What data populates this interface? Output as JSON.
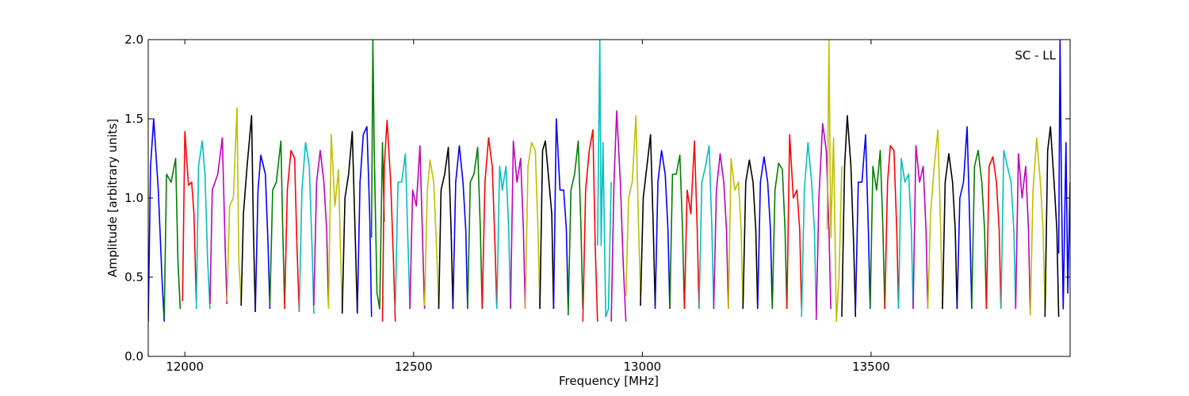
{
  "chart_data": {
    "type": "line",
    "title": "",
    "xlabel": "Frequency [MHz]",
    "ylabel": "Amplitude [arbitrary units]",
    "annotation": "SC - LL",
    "xlim": [
      11920,
      13935
    ],
    "ylim": [
      0.0,
      2.0
    ],
    "xticks": [
      {
        "value": 12000,
        "label": "12000"
      },
      {
        "value": 12500,
        "label": "12500"
      },
      {
        "value": 13000,
        "label": "13000"
      },
      {
        "value": 13500,
        "label": "13500"
      }
    ],
    "yticks": [
      {
        "value": 0.0,
        "label": "0.0"
      },
      {
        "value": 0.5,
        "label": "0.5"
      },
      {
        "value": 1.0,
        "label": "1.0"
      },
      {
        "value": 1.5,
        "label": "1.5"
      },
      {
        "value": 2.0,
        "label": "2.0"
      }
    ],
    "grid": false,
    "legend": "none",
    "color_cycle": [
      "#0000ff",
      "#007f00",
      "#ff0000",
      "#00bfbf",
      "#bf00bf",
      "#bfbf00",
      "#000000"
    ],
    "background_series_color": "#bfbfbf",
    "channel_width_mhz": 26.5,
    "series": [
      {
        "color": "#0000ff",
        "x": [
          11920,
          11925,
          11932,
          11942,
          11950,
          11955
        ],
        "y": [
          0.22,
          1.2,
          1.5,
          1.05,
          0.5,
          0.22
        ]
      },
      {
        "color": "#007f00",
        "x": [
          11955,
          11960,
          11970,
          11980,
          11985,
          11990
        ],
        "y": [
          0.25,
          1.15,
          1.1,
          1.25,
          0.6,
          0.3
        ]
      },
      {
        "color": "#ff0000",
        "x": [
          11995,
          12000,
          12008,
          12015,
          12020,
          12025
        ],
        "y": [
          0.35,
          1.42,
          1.08,
          1.1,
          0.9,
          0.35
        ]
      },
      {
        "color": "#00bfbf",
        "x": [
          12025,
          12030,
          12038,
          12044,
          12050,
          12055
        ],
        "y": [
          0.3,
          1.2,
          1.36,
          1.15,
          0.6,
          0.3
        ]
      },
      {
        "color": "#bf00bf",
        "x": [
          12055,
          12060,
          12072,
          12082,
          12088,
          12092
        ],
        "y": [
          0.33,
          1.05,
          1.15,
          1.38,
          0.7,
          0.33
        ]
      },
      {
        "color": "#bfbf00",
        "x": [
          12092,
          12098,
          12106,
          12114,
          12118,
          12123
        ],
        "y": [
          0.35,
          0.95,
          1.0,
          1.57,
          0.6,
          0.35
        ]
      },
      {
        "color": "#000000",
        "x": [
          12123,
          12128,
          12136,
          12146,
          12150,
          12154
        ],
        "y": [
          0.32,
          0.9,
          1.2,
          1.52,
          0.8,
          0.28
        ]
      },
      {
        "color": "#0000ff",
        "x": [
          12154,
          12160,
          12166,
          12176,
          12182,
          12186
        ],
        "y": [
          0.28,
          1.05,
          1.27,
          1.15,
          0.7,
          0.3
        ]
      },
      {
        "color": "#007f00",
        "x": [
          12186,
          12192,
          12200,
          12210,
          12214,
          12218
        ],
        "y": [
          0.33,
          1.05,
          1.1,
          1.36,
          0.8,
          0.33
        ]
      },
      {
        "color": "#ff0000",
        "x": [
          12218,
          12224,
          12232,
          12240,
          12245,
          12250
        ],
        "y": [
          0.3,
          1.05,
          1.3,
          1.25,
          0.7,
          0.28
        ]
      },
      {
        "color": "#00bfbf",
        "x": [
          12250,
          12256,
          12264,
          12272,
          12278,
          12282
        ],
        "y": [
          0.28,
          1.05,
          1.35,
          1.2,
          0.7,
          0.27
        ]
      },
      {
        "color": "#bf00bf",
        "x": [
          12282,
          12288,
          12296,
          12304,
          12310,
          12314
        ],
        "y": [
          0.32,
          1.1,
          1.3,
          1.1,
          0.8,
          0.32
        ]
      },
      {
        "color": "#bfbf00",
        "x": [
          12314,
          12320,
          12328,
          12336,
          12340,
          12344
        ],
        "y": [
          0.3,
          1.4,
          0.95,
          1.18,
          0.7,
          0.3
        ]
      },
      {
        "color": "#000000",
        "x": [
          12344,
          12350,
          12358,
          12366,
          12372,
          12377
        ],
        "y": [
          0.27,
          1.0,
          1.15,
          1.42,
          0.8,
          0.27
        ]
      },
      {
        "color": "#0000ff",
        "x": [
          12377,
          12383,
          12390,
          12398,
          12404,
          12408
        ],
        "y": [
          0.27,
          1.1,
          1.4,
          1.45,
          0.9,
          0.25
        ]
      },
      {
        "color": "#007f00",
        "x": [
          12408,
          12411,
          12414,
          12420,
          12426,
          12432,
          12436
        ],
        "y": [
          0.75,
          2.0,
          1.3,
          0.4,
          0.3,
          1.35,
          0.85
        ]
      },
      {
        "color": "#ff0000",
        "x": [
          12432,
          12436,
          12442,
          12450,
          12456,
          12460
        ],
        "y": [
          0.22,
          1.2,
          1.49,
          1.1,
          0.6,
          0.22
        ]
      },
      {
        "color": "#00bfbf",
        "x": [
          12460,
          12466,
          12474,
          12482,
          12488,
          12492
        ],
        "y": [
          0.3,
          1.1,
          1.1,
          1.28,
          0.7,
          0.3
        ]
      },
      {
        "color": "#bf00bf",
        "x": [
          12492,
          12498,
          12506,
          12514,
          12520,
          12524
        ],
        "y": [
          0.3,
          1.05,
          0.95,
          1.33,
          0.7,
          0.3
        ]
      },
      {
        "color": "#bfbf00",
        "x": [
          12524,
          12530,
          12536,
          12544,
          12550,
          12555
        ],
        "y": [
          0.32,
          1.05,
          1.24,
          1.1,
          0.7,
          0.3
        ]
      },
      {
        "color": "#000000",
        "x": [
          12555,
          12560,
          12568,
          12576,
          12582,
          12586
        ],
        "y": [
          0.3,
          1.05,
          1.15,
          1.32,
          0.8,
          0.3
        ]
      },
      {
        "color": "#0000ff",
        "x": [
          12586,
          12592,
          12600,
          12608,
          12614,
          12618
        ],
        "y": [
          0.3,
          1.1,
          1.33,
          1.1,
          0.8,
          0.3
        ]
      },
      {
        "color": "#007f00",
        "x": [
          12618,
          12624,
          12632,
          12640,
          12646,
          12650
        ],
        "y": [
          0.3,
          1.1,
          1.15,
          1.32,
          0.8,
          0.3
        ]
      },
      {
        "color": "#ff0000",
        "x": [
          12650,
          12656,
          12664,
          12672,
          12678,
          12682
        ],
        "y": [
          0.3,
          1.1,
          1.38,
          1.2,
          0.7,
          0.3
        ]
      },
      {
        "color": "#00bfbf",
        "x": [
          12682,
          12688,
          12694,
          12702,
          12708,
          12712
        ],
        "y": [
          0.3,
          1.2,
          1.05,
          1.2,
          0.8,
          0.3
        ]
      },
      {
        "color": "#bf00bf",
        "x": [
          12712,
          12718,
          12726,
          12734,
          12740,
          12744
        ],
        "y": [
          0.3,
          1.36,
          1.1,
          1.25,
          0.8,
          0.3
        ]
      },
      {
        "color": "#bfbf00",
        "x": [
          12744,
          12750,
          12758,
          12766,
          12772,
          12776
        ],
        "y": [
          0.3,
          1.2,
          1.35,
          1.3,
          0.8,
          0.3
        ]
      },
      {
        "color": "#000000",
        "x": [
          12776,
          12782,
          12788,
          12796,
          12802,
          12806
        ],
        "y": [
          0.3,
          1.3,
          1.36,
          1.1,
          0.9,
          0.3
        ]
      },
      {
        "color": "#0000ff",
        "x": [
          12806,
          12812,
          12820,
          12828,
          12834,
          12838
        ],
        "y": [
          0.3,
          1.5,
          1.05,
          1.05,
          0.8,
          0.3
        ]
      },
      {
        "color": "#007f00",
        "x": [
          12838,
          12844,
          12852,
          12860,
          12866,
          12870
        ],
        "y": [
          0.26,
          1.05,
          1.15,
          1.36,
          0.8,
          0.3
        ]
      },
      {
        "color": "#ff0000",
        "x": [
          12870,
          12876,
          12884,
          12892,
          12897,
          12902
        ],
        "y": [
          0.22,
          1.05,
          1.3,
          1.43,
          0.7,
          0.22
        ]
      },
      {
        "color": "#00bfbf",
        "x": [
          12902,
          12907,
          12910,
          12914,
          12920,
          12926,
          12932
        ],
        "y": [
          0.7,
          2.0,
          0.7,
          1.35,
          0.25,
          0.3,
          1.1
        ]
      },
      {
        "color": "#bf00bf",
        "x": [
          12932,
          12938,
          12944,
          12952,
          12958,
          12964
        ],
        "y": [
          0.22,
          1.1,
          1.55,
          1.1,
          0.6,
          0.22
        ]
      },
      {
        "color": "#bfbf00",
        "x": [
          12964,
          12970,
          12978,
          12986,
          12992,
          12996
        ],
        "y": [
          0.38,
          1.0,
          1.1,
          1.52,
          0.8,
          0.38
        ]
      },
      {
        "color": "#000000",
        "x": [
          12996,
          13002,
          13010,
          13018,
          13024,
          13028
        ],
        "y": [
          0.32,
          1.0,
          1.2,
          1.4,
          0.8,
          0.32
        ]
      },
      {
        "color": "#0000ff",
        "x": [
          13028,
          13034,
          13042,
          13050,
          13056,
          13060
        ],
        "y": [
          0.3,
          1.1,
          1.3,
          1.15,
          0.8,
          0.3
        ]
      },
      {
        "color": "#007f00",
        "x": [
          13060,
          13066,
          13074,
          13082,
          13088,
          13092
        ],
        "y": [
          0.3,
          1.15,
          1.15,
          1.27,
          0.8,
          0.3
        ]
      },
      {
        "color": "#ff0000",
        "x": [
          13092,
          13098,
          13106,
          13114,
          13120,
          13124
        ],
        "y": [
          0.3,
          1.05,
          0.9,
          1.36,
          0.8,
          0.3
        ]
      },
      {
        "color": "#00bfbf",
        "x": [
          13124,
          13130,
          13138,
          13146,
          13152,
          13156
        ],
        "y": [
          0.3,
          1.1,
          1.2,
          1.33,
          0.8,
          0.3
        ]
      },
      {
        "color": "#bf00bf",
        "x": [
          13156,
          13162,
          13170,
          13178,
          13184,
          13188
        ],
        "y": [
          0.3,
          1.05,
          1.28,
          1.1,
          0.8,
          0.3
        ]
      },
      {
        "color": "#bfbf00",
        "x": [
          13188,
          13194,
          13202,
          13210,
          13216,
          13220
        ],
        "y": [
          0.3,
          1.25,
          1.05,
          1.1,
          0.8,
          0.3
        ]
      },
      {
        "color": "#000000",
        "x": [
          13220,
          13226,
          13234,
          13242,
          13248,
          13252
        ],
        "y": [
          0.3,
          1.1,
          1.24,
          1.1,
          0.8,
          0.3
        ]
      },
      {
        "color": "#0000ff",
        "x": [
          13252,
          13258,
          13266,
          13274,
          13280,
          13284
        ],
        "y": [
          0.3,
          1.1,
          1.26,
          1.1,
          0.8,
          0.3
        ]
      },
      {
        "color": "#007f00",
        "x": [
          13284,
          13290,
          13298,
          13306,
          13312,
          13316
        ],
        "y": [
          0.3,
          1.05,
          1.22,
          1.18,
          0.8,
          0.3
        ]
      },
      {
        "color": "#ff0000",
        "x": [
          13316,
          13322,
          13330,
          13338,
          13344,
          13348
        ],
        "y": [
          0.3,
          1.4,
          1.0,
          1.05,
          0.8,
          0.3
        ]
      },
      {
        "color": "#00bfbf",
        "x": [
          13348,
          13354,
          13362,
          13370,
          13376,
          13380
        ],
        "y": [
          0.25,
          1.05,
          1.35,
          1.1,
          0.8,
          0.28
        ]
      },
      {
        "color": "#bf00bf",
        "x": [
          13380,
          13386,
          13394,
          13402,
          13408,
          13412
        ],
        "y": [
          0.23,
          1.0,
          1.47,
          1.3,
          0.8,
          0.3
        ]
      },
      {
        "color": "#bfbf00",
        "x": [
          13404,
          13408,
          13412,
          13418,
          13424,
          13430,
          13436
        ],
        "y": [
          0.8,
          2.0,
          0.75,
          1.38,
          0.22,
          0.5,
          1.2
        ]
      },
      {
        "color": "#000000",
        "x": [
          13436,
          13442,
          13448,
          13456,
          13462,
          13466
        ],
        "y": [
          0.25,
          1.2,
          1.52,
          1.2,
          0.7,
          0.25
        ]
      },
      {
        "color": "#0000ff",
        "x": [
          13466,
          13472,
          13480,
          13488,
          13494,
          13498
        ],
        "y": [
          0.3,
          1.1,
          1.1,
          1.4,
          0.8,
          0.3
        ]
      },
      {
        "color": "#007f00",
        "x": [
          13498,
          13504,
          13512,
          13520,
          13526,
          13530
        ],
        "y": [
          0.3,
          1.2,
          1.05,
          1.3,
          0.8,
          0.3
        ]
      },
      {
        "color": "#ff0000",
        "x": [
          13530,
          13536,
          13542,
          13550,
          13556,
          13560
        ],
        "y": [
          0.3,
          1.1,
          1.33,
          1.3,
          0.8,
          0.3
        ]
      },
      {
        "color": "#00bfbf",
        "x": [
          13560,
          13566,
          13574,
          13582,
          13588,
          13592
        ],
        "y": [
          0.3,
          1.25,
          1.1,
          1.15,
          0.8,
          0.3
        ]
      },
      {
        "color": "#bf00bf",
        "x": [
          13592,
          13598,
          13606,
          13614,
          13620,
          13624
        ],
        "y": [
          0.3,
          1.33,
          1.1,
          1.2,
          0.8,
          0.3
        ]
      },
      {
        "color": "#bfbf00",
        "x": [
          13624,
          13630,
          13638,
          13646,
          13652,
          13656
        ],
        "y": [
          0.3,
          0.9,
          1.2,
          1.43,
          0.8,
          0.3
        ]
      },
      {
        "color": "#000000",
        "x": [
          13656,
          13662,
          13670,
          13678,
          13684,
          13688
        ],
        "y": [
          0.3,
          1.1,
          1.28,
          1.1,
          0.8,
          0.3
        ]
      },
      {
        "color": "#0000ff",
        "x": [
          13688,
          13694,
          13702,
          13710,
          13716,
          13720
        ],
        "y": [
          0.3,
          1.0,
          1.1,
          1.45,
          0.8,
          0.3
        ]
      },
      {
        "color": "#007f00",
        "x": [
          13720,
          13726,
          13734,
          13742,
          13748,
          13752
        ],
        "y": [
          0.3,
          1.2,
          1.3,
          1.1,
          0.8,
          0.3
        ]
      },
      {
        "color": "#ff0000",
        "x": [
          13752,
          13758,
          13766,
          13774,
          13780,
          13784
        ],
        "y": [
          0.3,
          1.2,
          1.26,
          1.1,
          0.8,
          0.3
        ]
      },
      {
        "color": "#00bfbf",
        "x": [
          13784,
          13790,
          13798,
          13806,
          13812,
          13816
        ],
        "y": [
          0.3,
          1.3,
          1.2,
          1.1,
          0.8,
          0.3
        ]
      },
      {
        "color": "#bf00bf",
        "x": [
          13816,
          13822,
          13830,
          13838,
          13844,
          13848
        ],
        "y": [
          0.3,
          1.28,
          1.0,
          1.2,
          0.8,
          0.26
        ]
      },
      {
        "color": "#bfbf00",
        "x": [
          13848,
          13854,
          13862,
          13870,
          13876,
          13880
        ],
        "y": [
          0.26,
          1.05,
          1.38,
          1.1,
          0.8,
          0.3
        ]
      },
      {
        "color": "#000000",
        "x": [
          13880,
          13886,
          13892,
          13900,
          13906,
          13910
        ],
        "y": [
          0.25,
          1.3,
          1.45,
          1.1,
          0.8,
          0.25
        ]
      },
      {
        "color": "#0000ff",
        "x": [
          13910,
          13913,
          13916,
          13920,
          13926,
          13930,
          13935
        ],
        "y": [
          0.65,
          2.0,
          1.1,
          0.3,
          1.35,
          0.4,
          1.1
        ]
      }
    ]
  }
}
